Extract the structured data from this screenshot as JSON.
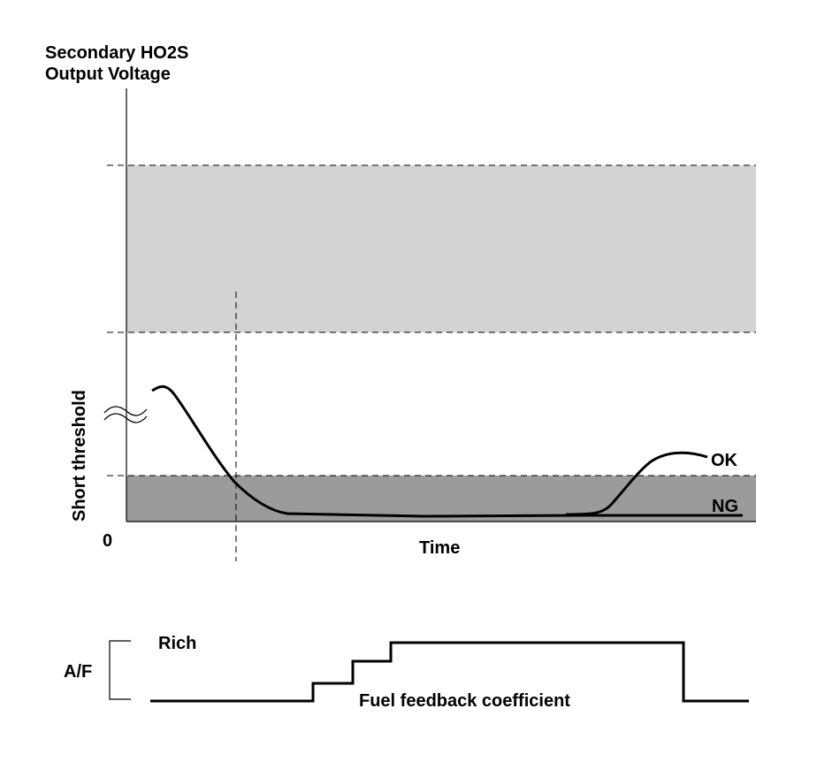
{
  "diagram": {
    "y_title_line1": "Secondary HO2S",
    "y_title_line2": "Output Voltage",
    "short_threshold_label": "Short threshold",
    "origin_label": "0",
    "x_label": "Time",
    "ok_label": "OK",
    "ng_label": "NG",
    "af_label": "A/F",
    "rich_label": "Rich",
    "coefficient_label": "Fuel feedback coefficient"
  },
  "colors": {
    "upper_band": "#d3d3d3",
    "lower_band": "#9b9b9b",
    "line": "#000000"
  }
}
